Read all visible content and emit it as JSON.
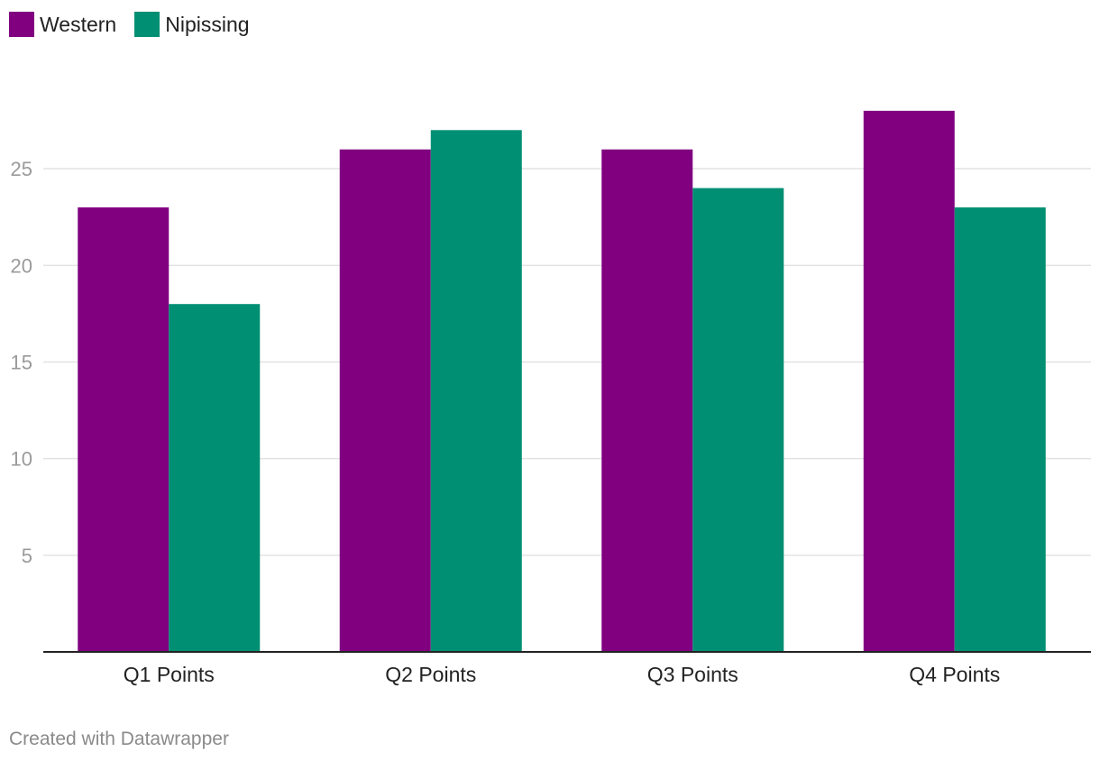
{
  "chart_data": {
    "type": "bar",
    "categories": [
      "Q1 Points",
      "Q2 Points",
      "Q3 Points",
      "Q4 Points"
    ],
    "series": [
      {
        "name": "Western",
        "color": "#800080",
        "values": [
          23,
          26,
          26,
          28
        ]
      },
      {
        "name": "Nipissing",
        "color": "#008f73",
        "values": [
          18,
          27,
          24,
          23
        ]
      }
    ],
    "yticks": [
      5,
      10,
      15,
      20,
      25
    ],
    "ylim": [
      0,
      30
    ],
    "title": "",
    "xlabel": "",
    "ylabel": "",
    "grid": true,
    "legend": "top-left"
  },
  "credit": "Created with Datawrapper"
}
